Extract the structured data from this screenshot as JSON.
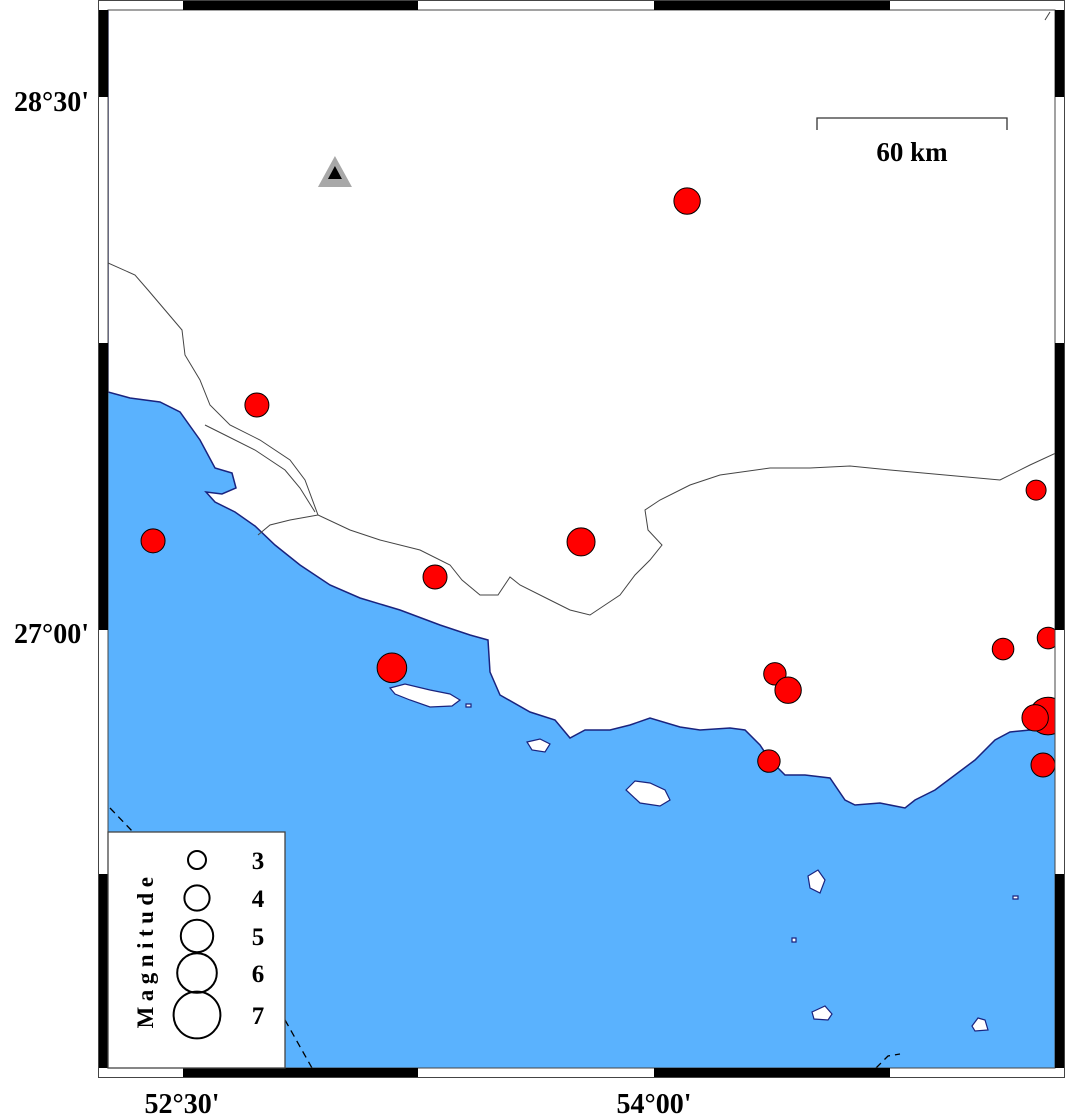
{
  "map": {
    "colors": {
      "water": "#5ab2fe",
      "land": "#ffffff",
      "coast": "#1a237e",
      "border": "#444444",
      "event_fill": "#ff0000",
      "station_outer": "#a8a8a8",
      "station_inner": "#000000"
    },
    "lon_range": [
      52.27,
      55.28
    ],
    "lat_range": [
      26.0,
      28.78
    ],
    "lat_labels": [
      {
        "text": "28°30'",
        "lat": 28.5
      },
      {
        "text": "27°00'",
        "lat": 27.0
      }
    ],
    "lon_labels": [
      {
        "text": "52°30'",
        "lon": 52.5
      },
      {
        "text": "54°00'",
        "lon": 54.0
      }
    ],
    "scale_bar": {
      "label": "60 km"
    },
    "station": {
      "icon": "triangle-station-icon",
      "lon": 52.986,
      "lat": 28.294
    },
    "events": [
      {
        "lon": 54.105,
        "lat": 28.215,
        "mag": 3.8
      },
      {
        "lon": 52.738,
        "lat": 27.64,
        "mag": 3.5
      },
      {
        "lon": 52.408,
        "lat": 27.257,
        "mag": 3.5
      },
      {
        "lon": 53.768,
        "lat": 27.254,
        "mag": 4.0
      },
      {
        "lon": 53.304,
        "lat": 27.155,
        "mag": 3.5
      },
      {
        "lon": 53.167,
        "lat": 26.899,
        "mag": 4.2
      },
      {
        "lon": 55.214,
        "lat": 27.4,
        "mag": 3.0
      },
      {
        "lon": 55.252,
        "lat": 26.983,
        "mag": 3.2
      },
      {
        "lon": 55.109,
        "lat": 26.952,
        "mag": 3.2
      },
      {
        "lon": 54.384,
        "lat": 26.882,
        "mag": 3.3
      },
      {
        "lon": 54.426,
        "lat": 26.836,
        "mag": 3.8
      },
      {
        "lon": 55.252,
        "lat": 26.763,
        "mag": 5.2
      },
      {
        "lon": 55.211,
        "lat": 26.758,
        "mag": 3.8
      },
      {
        "lon": 54.365,
        "lat": 26.636,
        "mag": 3.3
      },
      {
        "lon": 55.236,
        "lat": 26.625,
        "mag": 3.5
      }
    ]
  },
  "legend": {
    "title": "Magnitude",
    "items": [
      {
        "label": "3",
        "mag": 3
      },
      {
        "label": "4",
        "mag": 4
      },
      {
        "label": "5",
        "mag": 5
      },
      {
        "label": "6",
        "mag": 6
      },
      {
        "label": "7",
        "mag": 7
      }
    ]
  }
}
